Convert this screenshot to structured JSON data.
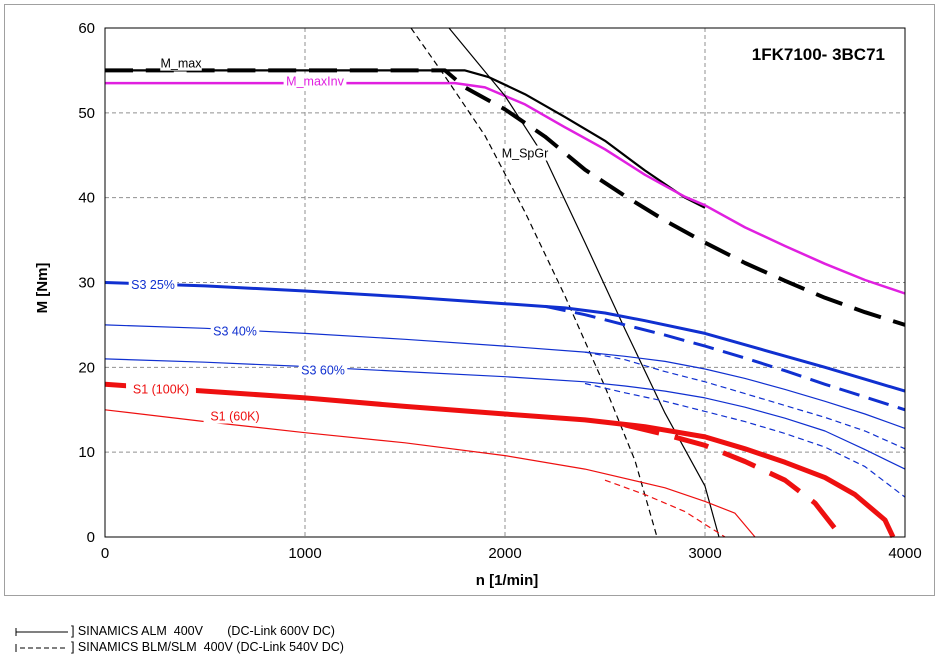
{
  "chart_data": {
    "type": "line",
    "title": "1FK7100- 3BC71",
    "xlabel": "n [1/min]",
    "ylabel": "M [Nm]",
    "xlim": [
      0,
      4000
    ],
    "ylim": [
      0,
      60
    ],
    "xticks": [
      0,
      1000,
      2000,
      3000,
      4000
    ],
    "yticks": [
      0,
      10,
      20,
      30,
      40,
      50,
      60
    ],
    "grid": true,
    "series": [
      {
        "name": "M_max",
        "color": "#000000",
        "width": 2.2,
        "dash": "solid",
        "x": [
          0,
          1800,
          1920,
          2100,
          2300,
          2500,
          2700,
          2900,
          3000
        ],
        "y": [
          55,
          55,
          54.2,
          52.2,
          49.5,
          46.7,
          43.2,
          40,
          38.8
        ]
      },
      {
        "name": "",
        "color": "#000000",
        "width": 4,
        "dash": "long",
        "x": [
          0,
          1700,
          1800,
          2000,
          2200,
          2400,
          2600,
          2800,
          3000,
          3200,
          3400,
          3600,
          3800,
          4000
        ],
        "y": [
          55,
          55,
          53,
          50.4,
          47.2,
          43.3,
          40.2,
          37.3,
          34.7,
          32.3,
          30.2,
          28.2,
          26.5,
          25
        ]
      },
      {
        "name": "M_maxInv",
        "color": "#e020e0",
        "width": 2.5,
        "dash": "solid",
        "x": [
          0,
          1750,
          1900,
          2100,
          2300,
          2500,
          2700,
          2900,
          3000,
          3200,
          3400,
          3600,
          3800,
          4000
        ],
        "y": [
          53.5,
          53.5,
          53,
          51,
          48.3,
          45.7,
          42.7,
          40.1,
          39.1,
          36.5,
          34.3,
          32.2,
          30.3,
          28.7
        ]
      },
      {
        "name": "M_SpGr",
        "color": "#000000",
        "width": 1.2,
        "dash": "solid",
        "x": [
          1720,
          2000,
          2200,
          2400,
          2600,
          2800,
          3000,
          3070
        ],
        "y": [
          60,
          52,
          44.7,
          34.7,
          24.5,
          14.6,
          6,
          0
        ]
      },
      {
        "name": "",
        "color": "#000000",
        "width": 1.2,
        "dash": "short",
        "x": [
          1530,
          1700,
          1900,
          2100,
          2300,
          2500,
          2650,
          2760
        ],
        "y": [
          60,
          54.3,
          47.3,
          38.3,
          28.4,
          17.7,
          9,
          0
        ]
      },
      {
        "name": "S3 25%",
        "color": "#1030d0",
        "width": 3,
        "dash": "solid",
        "x": [
          0,
          500,
          1000,
          1500,
          2000,
          2300,
          2500,
          2700,
          3000,
          3300,
          3600,
          4000
        ],
        "y": [
          30,
          29.6,
          29,
          28.3,
          27.5,
          27,
          26.4,
          25.5,
          24,
          22,
          20,
          17.2
        ]
      },
      {
        "name": "",
        "color": "#1030d0",
        "width": 3,
        "dash": "long",
        "x": [
          2200,
          2400,
          2600,
          2800,
          3000,
          3200,
          3400,
          3600,
          3800,
          4000
        ],
        "y": [
          27.2,
          26.2,
          25,
          23.8,
          22.5,
          21.1,
          19.6,
          18,
          16.5,
          15
        ]
      },
      {
        "name": "S3 40%",
        "color": "#1030d0",
        "width": 1.2,
        "dash": "solid",
        "x": [
          0,
          500,
          1000,
          1500,
          2000,
          2400,
          2600,
          2800,
          3000,
          3200,
          3400,
          3600,
          3800,
          4000
        ],
        "y": [
          25,
          24.6,
          24,
          23.3,
          22.5,
          21.8,
          21.3,
          20.7,
          19.8,
          18.7,
          17.4,
          16,
          14.5,
          12.8
        ]
      },
      {
        "name": "",
        "color": "#1030d0",
        "width": 1.2,
        "dash": "short",
        "x": [
          2400,
          2600,
          2800,
          3000,
          3200,
          3400,
          3600,
          3800,
          4000
        ],
        "y": [
          21.8,
          20.9,
          19.5,
          18.3,
          16.9,
          15.5,
          14.1,
          12.5,
          10.4
        ]
      },
      {
        "name": "S3 60%",
        "color": "#1030d0",
        "width": 1.2,
        "dash": "solid",
        "x": [
          0,
          500,
          1000,
          1500,
          2000,
          2400,
          2600,
          2800,
          3000,
          3200,
          3400,
          3600,
          3800,
          4000
        ],
        "y": [
          21,
          20.6,
          20.1,
          19.5,
          18.9,
          18.3,
          17.8,
          17.2,
          16.4,
          15.3,
          14,
          12.5,
          10.3,
          8
        ]
      },
      {
        "name": "",
        "color": "#1030d0",
        "width": 1.2,
        "dash": "short",
        "x": [
          2400,
          2600,
          2800,
          3000,
          3200,
          3400,
          3600,
          3800,
          4000
        ],
        "y": [
          18.1,
          17,
          16,
          14.8,
          13.6,
          12.2,
          10.6,
          8.3,
          4.7
        ]
      },
      {
        "name": "S1 (100K)",
        "color": "#ee1010",
        "width": 5,
        "dash": "solid",
        "x": [
          0,
          500,
          1000,
          1500,
          2000,
          2400,
          2700,
          3000,
          3200,
          3400,
          3600,
          3750,
          3900,
          3940
        ],
        "y": [
          18,
          17.2,
          16.4,
          15.4,
          14.5,
          13.8,
          13,
          11.8,
          10.4,
          8.8,
          7,
          5,
          2,
          0
        ]
      },
      {
        "name": "",
        "color": "#ee1010",
        "width": 5,
        "dash": "long",
        "x": [
          2600,
          2800,
          3000,
          3200,
          3400,
          3550,
          3650
        ],
        "y": [
          13.2,
          12.1,
          10.8,
          8.9,
          6.7,
          4,
          1
        ]
      },
      {
        "name": "S1 (60K)",
        "color": "#ee1010",
        "width": 1.2,
        "dash": "solid",
        "x": [
          0,
          500,
          1000,
          1500,
          2000,
          2400,
          2800,
          3000,
          3150,
          3250
        ],
        "y": [
          15,
          13.6,
          12.3,
          11.1,
          9.6,
          8,
          5.8,
          4.2,
          2.8,
          0
        ]
      },
      {
        "name": "",
        "color": "#ee1010",
        "width": 1.2,
        "dash": "short",
        "x": [
          2500,
          2700,
          2900,
          3000,
          3100
        ],
        "y": [
          6.7,
          5,
          3,
          1.5,
          0
        ]
      }
    ],
    "annotations": [
      {
        "text": "M_max",
        "x": 380,
        "y": 55.8,
        "color": "#000000"
      },
      {
        "text": "M_maxInv",
        "x": 1050,
        "y": 53.7,
        "color": "#e020e0"
      },
      {
        "text": "M_SpGr",
        "x": 2100,
        "y": 45.2,
        "color": "#000000"
      },
      {
        "text": "S3 25%",
        "x": 240,
        "y": 29.7,
        "color": "#1030d0"
      },
      {
        "text": "S3 40%",
        "x": 650,
        "y": 24.2,
        "color": "#1030d0"
      },
      {
        "text": "S3 60%",
        "x": 1090,
        "y": 19.6,
        "color": "#1030d0"
      },
      {
        "text": "S1 (100K)",
        "x": 280,
        "y": 17.4,
        "color": "#ee1010"
      },
      {
        "text": "S1 (60K)",
        "x": 650,
        "y": 14.2,
        "color": "#ee1010"
      }
    ]
  },
  "legend": {
    "solid_label": "] SINAMICS ALM  400V       (DC-Link 600V DC)",
    "dashed_label": "] SINAMICS BLM/SLM  400V (DC-Link 540V DC)"
  }
}
